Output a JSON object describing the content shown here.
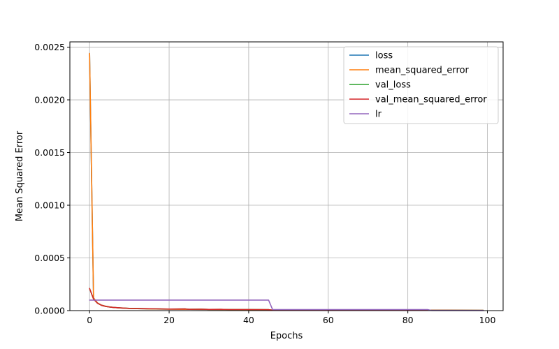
{
  "chart_data": {
    "type": "line",
    "title": "",
    "xlabel": "Epochs",
    "ylabel": "Mean Squared Error",
    "xlim": [
      -4.95,
      103.95
    ],
    "ylim": [
      0,
      0.00255
    ],
    "x_ticks": [
      0,
      20,
      40,
      60,
      80,
      100
    ],
    "x_tick_labels": [
      "0",
      "20",
      "40",
      "60",
      "80",
      "100"
    ],
    "y_ticks": [
      0,
      0.0005,
      0.001,
      0.0015,
      0.002,
      0.0025
    ],
    "y_tick_labels": [
      "0.0000",
      "0.0005",
      "0.0010",
      "0.0015",
      "0.0020",
      "0.0025"
    ],
    "grid": true,
    "legend_position": "top-right",
    "series": [
      {
        "name": "loss",
        "color": "#1f77b4",
        "x": [
          0,
          1,
          2,
          3,
          4,
          5,
          6,
          8,
          10,
          15,
          20,
          25,
          30,
          35,
          40,
          45,
          46,
          50,
          60,
          70,
          80,
          90,
          99
        ],
        "y": [
          0.00244,
          0.00012,
          7.2e-05,
          5.2e-05,
          4.2e-05,
          3.5e-05,
          3e-05,
          2.4e-05,
          2e-05,
          1.6e-05,
          1.4e-05,
          1.2e-05,
          1.1e-05,
          1e-05,
          9.5e-06,
          9e-06,
          4.5e-06,
          4e-06,
          3.5e-06,
          3e-06,
          2.8e-06,
          2.6e-06,
          2.5e-06
        ]
      },
      {
        "name": "mean_squared_error",
        "color": "#ff7f0e",
        "x": [
          0,
          1,
          2,
          3,
          4,
          5,
          6,
          8,
          10,
          15,
          20,
          25,
          30,
          35,
          40,
          45,
          46,
          50,
          60,
          70,
          80,
          90,
          99
        ],
        "y": [
          0.00244,
          0.00012,
          7.2e-05,
          5.2e-05,
          4.2e-05,
          3.5e-05,
          3e-05,
          2.4e-05,
          2e-05,
          1.6e-05,
          1.4e-05,
          1.2e-05,
          1.1e-05,
          1e-05,
          9.5e-06,
          9e-06,
          4.5e-06,
          4e-06,
          3.5e-06,
          3e-06,
          2.8e-06,
          2.6e-06,
          2.5e-06
        ]
      },
      {
        "name": "val_loss",
        "color": "#2ca02c",
        "x": [
          0,
          1,
          2,
          3,
          4,
          5,
          6,
          8,
          10,
          15,
          20,
          24,
          25,
          28,
          30,
          33,
          35,
          40,
          45,
          46,
          50,
          60,
          70,
          80,
          90,
          99
        ],
        "y": [
          0.00021,
          0.00011,
          7e-05,
          5e-05,
          4e-05,
          3.4e-05,
          3e-05,
          2.5e-05,
          2.1e-05,
          1.8e-05,
          1.5e-05,
          1.6e-05,
          1.2e-05,
          1.4e-05,
          1.1e-05,
          1.2e-05,
          1e-05,
          1e-05,
          9e-06,
          4e-06,
          4e-06,
          3.5e-06,
          3e-06,
          2.8e-06,
          2.6e-06,
          2.5e-06
        ]
      },
      {
        "name": "val_mean_squared_error",
        "color": "#d62728",
        "x": [
          0,
          1,
          2,
          3,
          4,
          5,
          6,
          8,
          10,
          15,
          20,
          24,
          25,
          28,
          30,
          33,
          35,
          40,
          45,
          46,
          50,
          60,
          70,
          80,
          90,
          99
        ],
        "y": [
          0.00021,
          0.00011,
          7e-05,
          5e-05,
          4e-05,
          3.4e-05,
          3e-05,
          2.5e-05,
          2.1e-05,
          1.8e-05,
          1.5e-05,
          1.6e-05,
          1.2e-05,
          1.4e-05,
          1.1e-05,
          1.2e-05,
          1e-05,
          1e-05,
          9e-06,
          4e-06,
          4e-06,
          3.5e-06,
          3e-06,
          2.8e-06,
          2.6e-06,
          2.5e-06
        ]
      },
      {
        "name": "lr",
        "color": "#9467bd",
        "x": [
          0,
          45,
          46,
          85,
          86,
          99
        ],
        "y": [
          0.0001,
          0.0001,
          1e-05,
          1e-05,
          1e-06,
          1e-06
        ]
      }
    ]
  }
}
